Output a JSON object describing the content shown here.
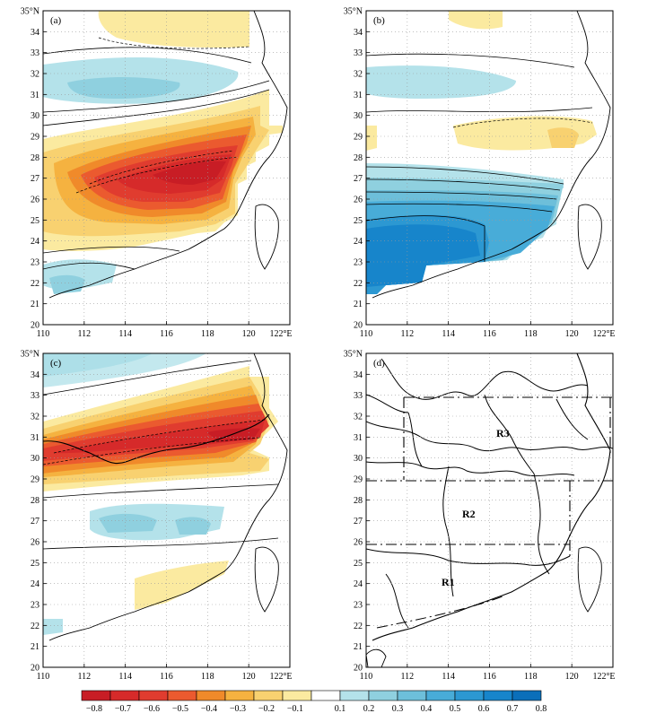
{
  "figure": {
    "axes": {
      "lon_ticks": [
        "110",
        "112",
        "114",
        "116",
        "118",
        "120",
        "122°E"
      ],
      "lat_ticks": [
        "20",
        "21",
        "22",
        "23",
        "24",
        "25",
        "26",
        "27",
        "28",
        "29",
        "30",
        "31",
        "32",
        "33",
        "34",
        "35°N"
      ]
    },
    "panels": [
      {
        "id": "a",
        "label": "(a)"
      },
      {
        "id": "b",
        "label": "(b)"
      },
      {
        "id": "c",
        "label": "(c)"
      },
      {
        "id": "d",
        "label": "(d)"
      }
    ],
    "regions": [
      {
        "label": "R3"
      },
      {
        "label": "R2"
      },
      {
        "label": "R1"
      }
    ],
    "colorbar": {
      "labels": [
        "−0.8",
        "−0.7",
        "−0.6",
        "−0.5",
        "−0.4",
        "−0.3",
        "−0.2",
        "−0.1",
        "0.1",
        "0.2",
        "0.3",
        "0.4",
        "0.5",
        "0.6",
        "0.7",
        "0.8"
      ],
      "colors": [
        "#c81d25",
        "#d62a2a",
        "#e03c2f",
        "#eb5a2f",
        "#f08a2a",
        "#f5b240",
        "#f8d170",
        "#fbeaa0",
        "#ffffff",
        "#b4e2ea",
        "#8fd0df",
        "#6dbfda",
        "#48acd8",
        "#2c98d2",
        "#1785cb",
        "#0b6fba"
      ]
    }
  }
}
